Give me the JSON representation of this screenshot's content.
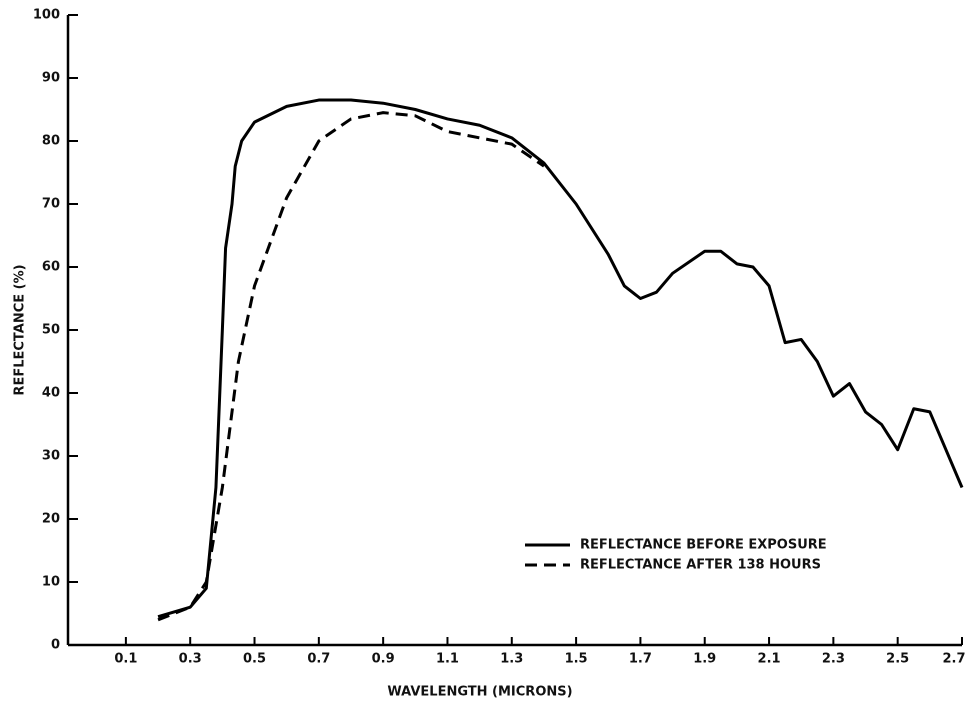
{
  "chart_data": {
    "type": "line",
    "x_label": "WAVELENGTH (MICRONS)",
    "y_label": "REFLECTANCE (%)",
    "xlim": [
      -0.08,
      2.7
    ],
    "ylim": [
      0,
      100
    ],
    "xticks": [
      0.1,
      0.3,
      0.5,
      0.7,
      0.9,
      1.1,
      1.3,
      1.5,
      1.7,
      1.9,
      2.1,
      2.3,
      2.5,
      2.7
    ],
    "yticks": [
      0,
      10,
      20,
      30,
      40,
      50,
      60,
      70,
      80,
      90,
      100
    ],
    "legend": "lower-right",
    "series": [
      {
        "name": "REFLECTANCE BEFORE EXPOSURE",
        "color": "#000000",
        "dash": "solid",
        "x": [
          0.2,
          0.3,
          0.35,
          0.38,
          0.4,
          0.41,
          0.43,
          0.44,
          0.46,
          0.5,
          0.6,
          0.7,
          0.8,
          0.9,
          1.0,
          1.1,
          1.2,
          1.3,
          1.4,
          1.5,
          1.6,
          1.65,
          1.7,
          1.75,
          1.8,
          1.9,
          1.95,
          2.0,
          2.05,
          2.1,
          2.15,
          2.2,
          2.25,
          2.3,
          2.35,
          2.4,
          2.45,
          2.5,
          2.55,
          2.6,
          2.65,
          2.7
        ],
        "values": [
          4.5,
          6,
          9,
          25,
          50,
          63,
          70,
          76,
          80,
          83,
          85.5,
          86.5,
          86.5,
          86,
          85,
          83.5,
          82.5,
          80.5,
          76.5,
          70,
          62,
          57,
          55,
          56,
          59,
          62.5,
          62.5,
          60.5,
          60,
          57,
          48,
          48.5,
          45,
          39.5,
          41.5,
          37,
          35,
          31,
          37.5,
          37,
          31,
          25
        ]
      },
      {
        "name": "REFLECTANCE AFTER 138 HOURS",
        "color": "#000000",
        "dash": "dashed",
        "x": [
          0.2,
          0.3,
          0.35,
          0.4,
          0.45,
          0.5,
          0.55,
          0.6,
          0.7,
          0.8,
          0.9,
          1.0,
          1.1,
          1.2,
          1.3,
          1.4
        ],
        "values": [
          4,
          6,
          10,
          25,
          45,
          57,
          64,
          71,
          80,
          83.5,
          84.5,
          84,
          81.5,
          80.5,
          79.5,
          76
        ]
      }
    ]
  }
}
